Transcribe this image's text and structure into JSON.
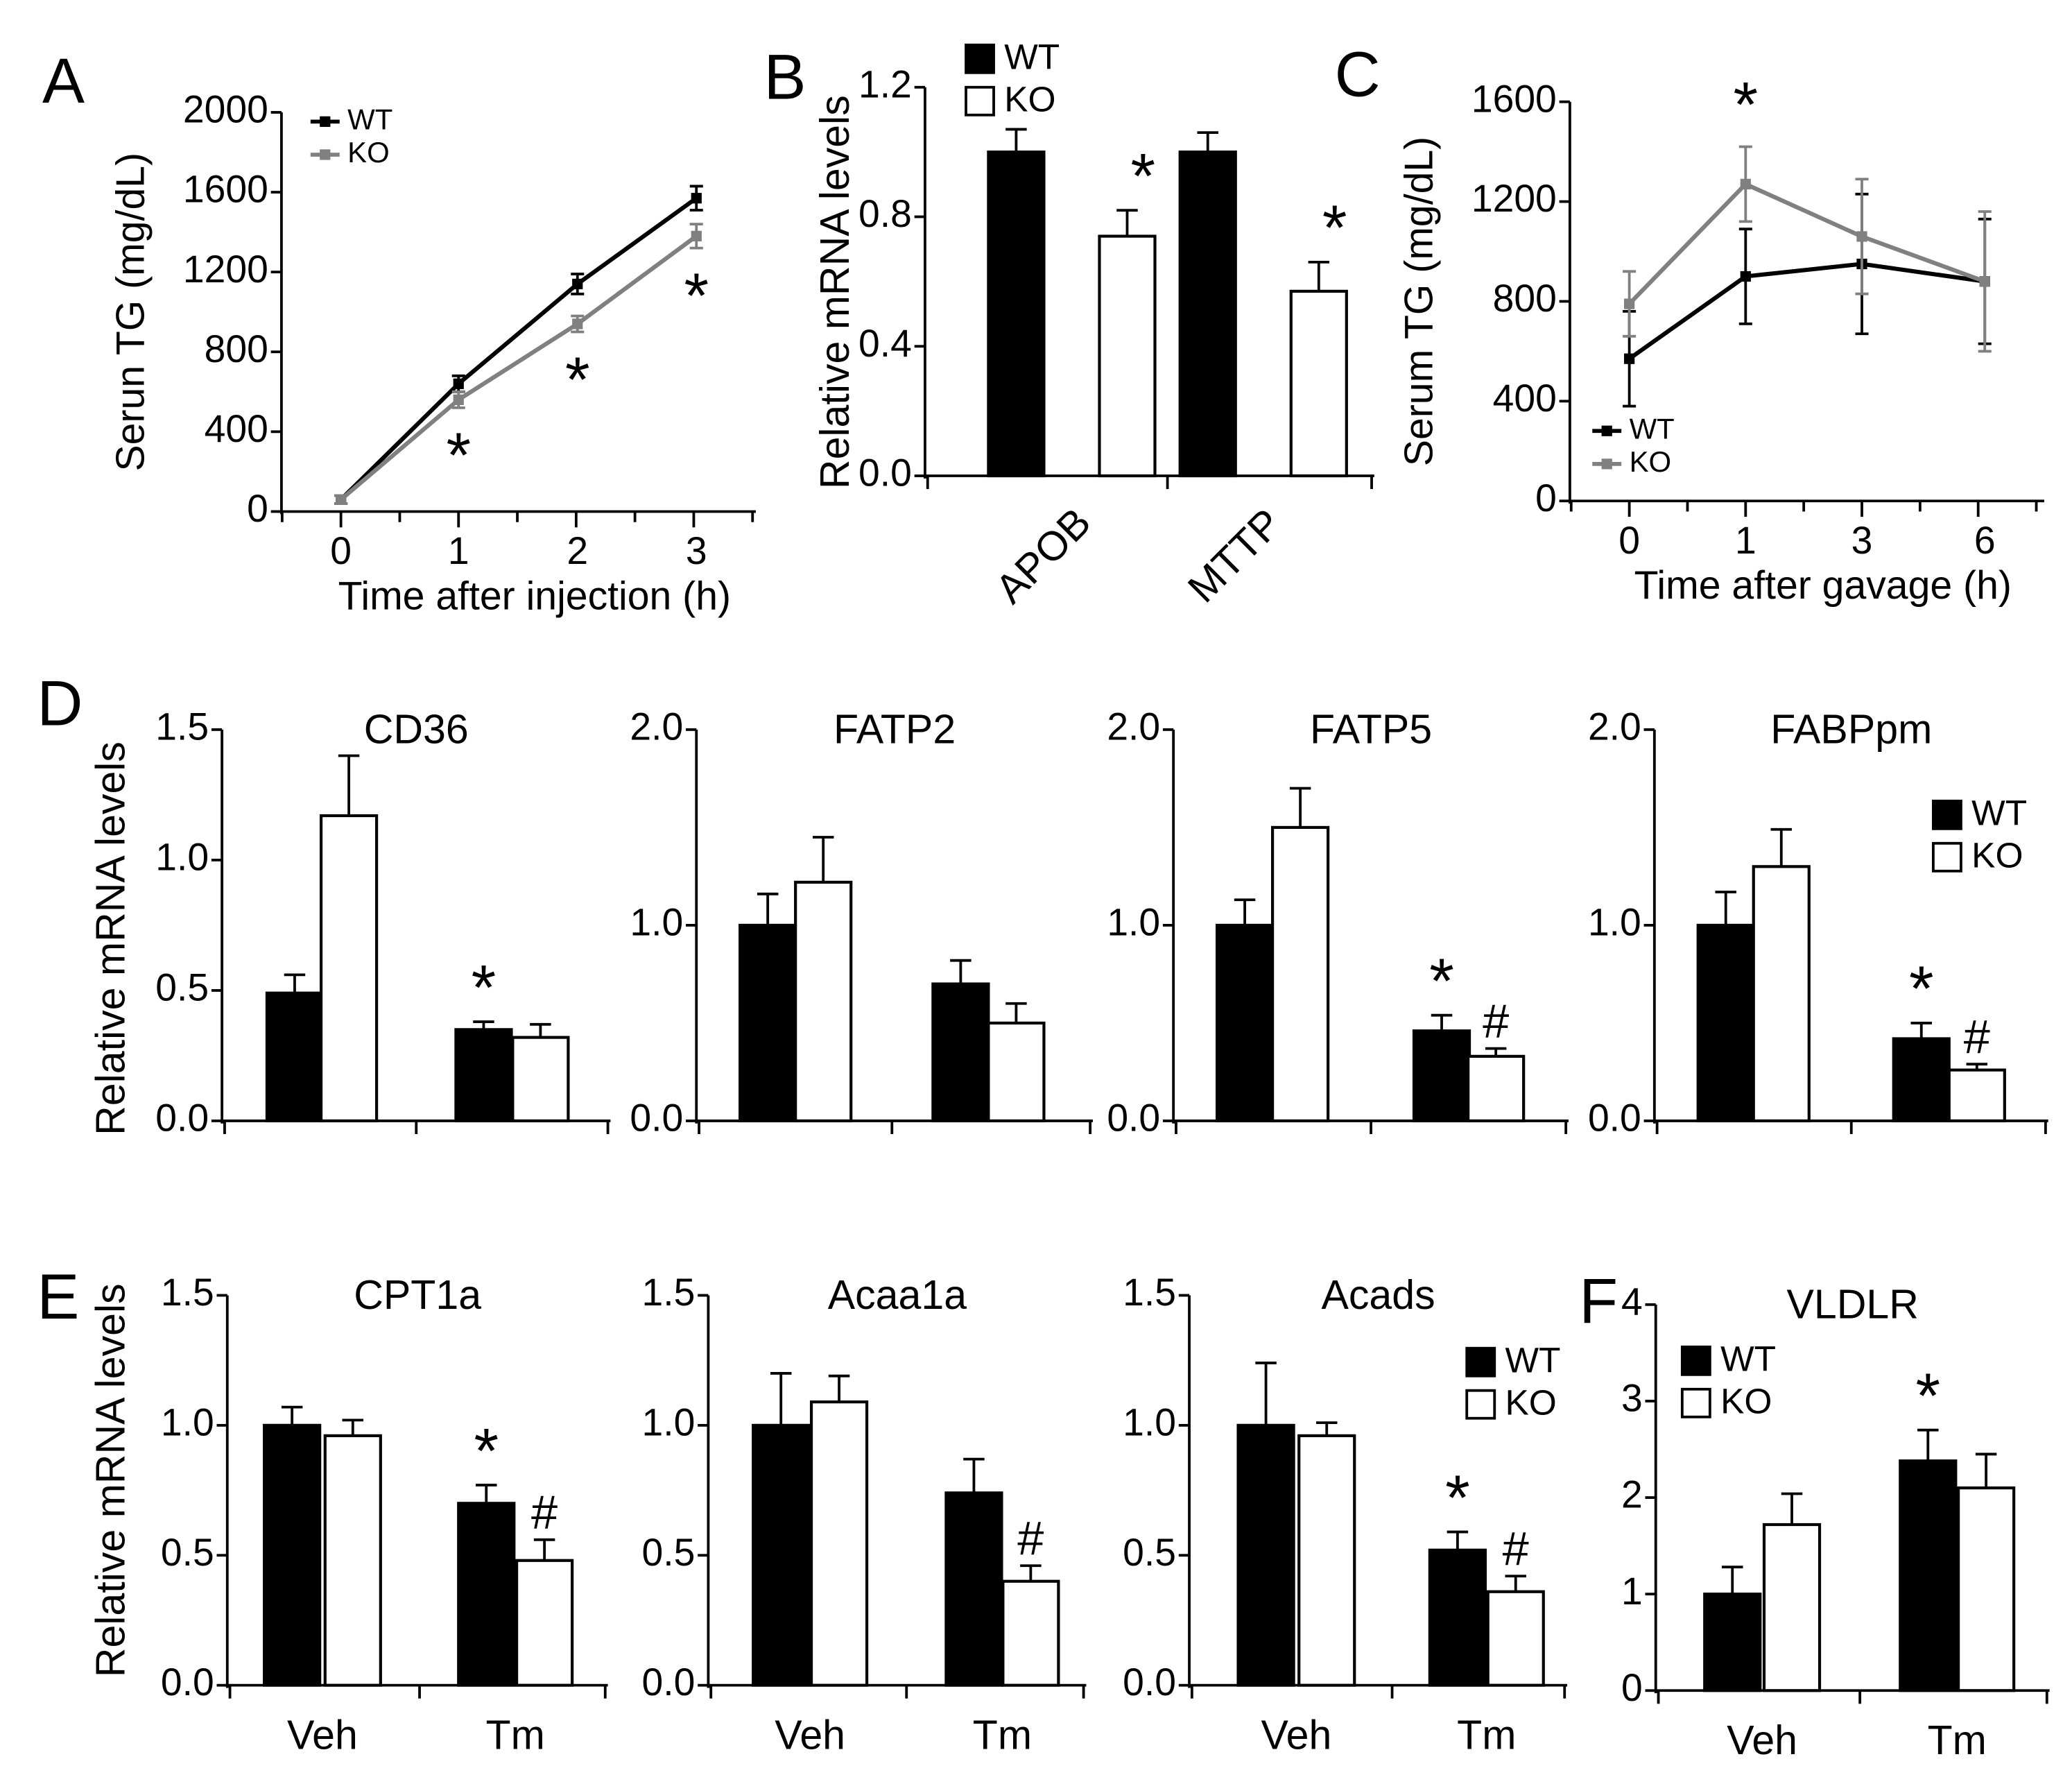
{
  "colors": {
    "wt": "#000000",
    "ko_line": "#808080",
    "ko_bar": "#ffffff",
    "axis": "#000000"
  },
  "chart_data": [
    {
      "id": "A",
      "type": "line",
      "panel_label": "A",
      "x": [
        "0",
        "1",
        "2",
        "3"
      ],
      "xlabel": "Time after injection (h)",
      "ylabel": "Serun TG (mg/dL)",
      "ylim": [
        0,
        2000
      ],
      "yticks": [
        "0",
        "400",
        "800",
        "1200",
        "1600",
        "2000"
      ],
      "series": [
        {
          "name": "WT",
          "values": [
            60,
            640,
            1140,
            1570
          ],
          "errors": [
            20,
            40,
            50,
            60
          ]
        },
        {
          "name": "KO",
          "values": [
            60,
            560,
            940,
            1380
          ],
          "errors": [
            20,
            40,
            40,
            60
          ]
        }
      ],
      "annotations": [
        {
          "x_index": 1,
          "text": "*"
        },
        {
          "x_index": 2,
          "text": "*"
        },
        {
          "x_index": 3,
          "text": "*"
        }
      ],
      "legend": [
        "WT",
        "KO"
      ],
      "legend_position": "top-left"
    },
    {
      "id": "B",
      "type": "bar",
      "panel_label": "B",
      "categories": [
        "APOB",
        "MTTP"
      ],
      "ylabel": "Relative mRNA levels",
      "ylim": [
        0,
        1.2
      ],
      "yticks": [
        "0.0",
        "0.4",
        "0.8",
        "1.2"
      ],
      "series": [
        {
          "name": "WT",
          "values": [
            1.0,
            1.0
          ],
          "errors": [
            0.07,
            0.06
          ]
        },
        {
          "name": "KO",
          "values": [
            0.74,
            0.57
          ],
          "errors": [
            0.08,
            0.09
          ]
        }
      ],
      "annotations": [
        {
          "category_index": 0,
          "series_index": 1,
          "text": "*"
        },
        {
          "category_index": 1,
          "series_index": 1,
          "text": "*"
        }
      ],
      "legend": [
        "WT",
        "KO"
      ],
      "legend_position": "top"
    },
    {
      "id": "C",
      "type": "line",
      "panel_label": "C",
      "x": [
        "0",
        "1",
        "3",
        "6"
      ],
      "xlabel": "Time after gavage (h)",
      "ylabel": "Serum TG (mg/dL)",
      "ylim": [
        0,
        1600
      ],
      "yticks": [
        "0",
        "400",
        "800",
        "1200",
        "1600"
      ],
      "series": [
        {
          "name": "WT",
          "values": [
            570,
            900,
            950,
            880
          ],
          "errors": [
            190,
            190,
            280,
            250
          ]
        },
        {
          "name": "KO",
          "values": [
            790,
            1270,
            1060,
            880
          ],
          "errors": [
            130,
            150,
            230,
            280
          ]
        }
      ],
      "annotations": [
        {
          "x_index": 1,
          "text": "*"
        }
      ],
      "legend": [
        "WT",
        "KO"
      ],
      "legend_position": "bottom-left"
    },
    {
      "id": "D1",
      "type": "bar",
      "panel_label": "D",
      "title": "CD36",
      "categories": [
        "",
        ""
      ],
      "ylabel": "Relative mRNA levels",
      "ylim": [
        0,
        1.5
      ],
      "yticks": [
        "0.0",
        "0.5",
        "1.0",
        "1.5"
      ],
      "series": [
        {
          "name": "WT",
          "values": [
            0.49,
            0.35
          ],
          "errors": [
            0.07,
            0.03
          ]
        },
        {
          "name": "KO",
          "values": [
            1.17,
            0.32
          ],
          "errors": [
            0.23,
            0.05
          ]
        }
      ],
      "annotations": [
        {
          "category_index": 1,
          "series_index": 0,
          "text": "*"
        }
      ]
    },
    {
      "id": "D2",
      "type": "bar",
      "title": "FATP2",
      "categories": [
        "",
        ""
      ],
      "ylim": [
        0,
        2.0
      ],
      "yticks": [
        "0.0",
        "1.0",
        "2.0"
      ],
      "series": [
        {
          "name": "WT",
          "values": [
            1.0,
            0.7
          ],
          "errors": [
            0.16,
            0.12
          ]
        },
        {
          "name": "KO",
          "values": [
            1.22,
            0.5
          ],
          "errors": [
            0.23,
            0.1
          ]
        }
      ],
      "annotations": []
    },
    {
      "id": "D3",
      "type": "bar",
      "title": "FATP5",
      "categories": [
        "",
        ""
      ],
      "ylim": [
        0,
        2.0
      ],
      "yticks": [
        "0.0",
        "1.0",
        "2.0"
      ],
      "series": [
        {
          "name": "WT",
          "values": [
            1.0,
            0.46
          ],
          "errors": [
            0.13,
            0.08
          ]
        },
        {
          "name": "KO",
          "values": [
            1.5,
            0.33
          ],
          "errors": [
            0.2,
            0.04
          ]
        }
      ],
      "annotations": [
        {
          "category_index": 1,
          "series_index": 0,
          "text": "*"
        },
        {
          "category_index": 1,
          "series_index": 1,
          "text": "#"
        }
      ]
    },
    {
      "id": "D4",
      "type": "bar",
      "title": "FABPpm",
      "categories": [
        "",
        ""
      ],
      "ylim": [
        0,
        2.0
      ],
      "yticks": [
        "0.0",
        "1.0",
        "2.0"
      ],
      "series": [
        {
          "name": "WT",
          "values": [
            1.0,
            0.42
          ],
          "errors": [
            0.17,
            0.08
          ]
        },
        {
          "name": "KO",
          "values": [
            1.3,
            0.26
          ],
          "errors": [
            0.19,
            0.03
          ]
        }
      ],
      "annotations": [
        {
          "category_index": 1,
          "series_index": 0,
          "text": "*"
        },
        {
          "category_index": 1,
          "series_index": 1,
          "text": "#"
        }
      ],
      "legend": [
        "WT",
        "KO"
      ],
      "legend_position": "right"
    },
    {
      "id": "E1",
      "type": "bar",
      "panel_label": "E",
      "title": "CPT1a",
      "categories": [
        "Veh",
        "Tm"
      ],
      "ylabel": "Relative mRNA levels",
      "ylim": [
        0,
        1.5
      ],
      "yticks": [
        "0.0",
        "0.5",
        "1.0",
        "1.5"
      ],
      "series": [
        {
          "name": "WT",
          "values": [
            1.0,
            0.7
          ],
          "errors": [
            0.07,
            0.07
          ]
        },
        {
          "name": "KO",
          "values": [
            0.96,
            0.48
          ],
          "errors": [
            0.06,
            0.08
          ]
        }
      ],
      "annotations": [
        {
          "category_index": 1,
          "series_index": 0,
          "text": "*"
        },
        {
          "category_index": 1,
          "series_index": 1,
          "text": "#"
        }
      ]
    },
    {
      "id": "E2",
      "type": "bar",
      "title": "Acaa1a",
      "categories": [
        "Veh",
        "Tm"
      ],
      "ylim": [
        0,
        1.5
      ],
      "yticks": [
        "0.0",
        "0.5",
        "1.0",
        "1.5"
      ],
      "series": [
        {
          "name": "WT",
          "values": [
            1.0,
            0.74
          ],
          "errors": [
            0.2,
            0.13
          ]
        },
        {
          "name": "KO",
          "values": [
            1.09,
            0.4
          ],
          "errors": [
            0.1,
            0.06
          ]
        }
      ],
      "annotations": [
        {
          "category_index": 1,
          "series_index": 1,
          "text": "#"
        }
      ]
    },
    {
      "id": "E3",
      "type": "bar",
      "title": "Acads",
      "categories": [
        "Veh",
        "Tm"
      ],
      "ylim": [
        0,
        1.5
      ],
      "yticks": [
        "0.0",
        "0.5",
        "1.0",
        "1.5"
      ],
      "series": [
        {
          "name": "WT",
          "values": [
            1.0,
            0.52
          ],
          "errors": [
            0.24,
            0.07
          ]
        },
        {
          "name": "KO",
          "values": [
            0.96,
            0.36
          ],
          "errors": [
            0.05,
            0.06
          ]
        }
      ],
      "annotations": [
        {
          "category_index": 1,
          "series_index": 0,
          "text": "*"
        },
        {
          "category_index": 1,
          "series_index": 1,
          "text": "#"
        }
      ],
      "legend": [
        "WT",
        "KO"
      ],
      "legend_position": "top-right"
    },
    {
      "id": "F",
      "type": "bar",
      "panel_label": "F",
      "title": "VLDLR",
      "categories": [
        "Veh",
        "Tm"
      ],
      "ylim": [
        0,
        4
      ],
      "yticks": [
        "0",
        "1",
        "2",
        "3",
        "4"
      ],
      "series": [
        {
          "name": "WT",
          "values": [
            1.0,
            2.38
          ],
          "errors": [
            0.28,
            0.32
          ]
        },
        {
          "name": "KO",
          "values": [
            1.72,
            2.1
          ],
          "errors": [
            0.32,
            0.35
          ]
        }
      ],
      "annotations": [
        {
          "category_index": 1,
          "series_index": 0,
          "text": "*"
        }
      ],
      "legend": [
        "WT",
        "KO"
      ],
      "legend_position": "top-left"
    }
  ]
}
